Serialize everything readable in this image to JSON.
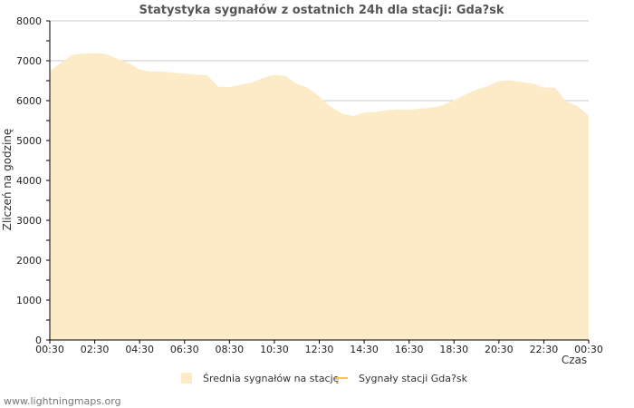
{
  "chart_data": {
    "type": "area",
    "title": "Statystyka sygnałów z ostatnich 24h dla stacji: Gda?sk",
    "xlabel": "Czas",
    "ylabel": "Zliczeń na godzinę",
    "ylim": [
      0,
      8000
    ],
    "yticks": [
      0,
      1000,
      2000,
      3000,
      4000,
      5000,
      6000,
      7000,
      8000
    ],
    "xticks": [
      "00:30",
      "02:30",
      "04:30",
      "06:30",
      "08:30",
      "10:30",
      "12:30",
      "14:30",
      "16:30",
      "18:30",
      "20:30",
      "22:30",
      "00:30"
    ],
    "x_unit": "hours since start (00:30)",
    "xlim": [
      0,
      24
    ],
    "grid": true,
    "legend_position": "bottom",
    "colors": {
      "area_fill": "#fdebc8",
      "line": "#f5c74b",
      "grid": "#cccccc",
      "axis": "#000000"
    },
    "series": [
      {
        "name": "Średnia sygnałów na stację",
        "kind": "area",
        "x": [
          0,
          0.5,
          1,
          1.5,
          2,
          2.5,
          3,
          3.5,
          4,
          4.5,
          5,
          5.5,
          6,
          6.5,
          7,
          7.5,
          8,
          8.5,
          9,
          9.5,
          10,
          10.5,
          11,
          11.5,
          12,
          12.5,
          13,
          13.5,
          14,
          14.5,
          15,
          15.5,
          16,
          16.5,
          17,
          17.5,
          18,
          18.5,
          19,
          19.5,
          20,
          20.5,
          21,
          21.5,
          22,
          22.5,
          23,
          23.5,
          24
        ],
        "values": [
          6750,
          6950,
          7150,
          7180,
          7190,
          7170,
          7050,
          6950,
          6780,
          6730,
          6730,
          6700,
          6680,
          6650,
          6640,
          6350,
          6340,
          6400,
          6450,
          6570,
          6650,
          6620,
          6420,
          6320,
          6100,
          5850,
          5680,
          5610,
          5700,
          5720,
          5760,
          5780,
          5770,
          5800,
          5820,
          5880,
          6010,
          6150,
          6280,
          6360,
          6490,
          6510,
          6470,
          6430,
          6330,
          6320,
          5980,
          5860,
          5620
        ]
      },
      {
        "name": "Sygnały stacji Gda?sk",
        "kind": "line",
        "x": [],
        "values": []
      }
    ]
  },
  "footer": "www.lightningmaps.org"
}
